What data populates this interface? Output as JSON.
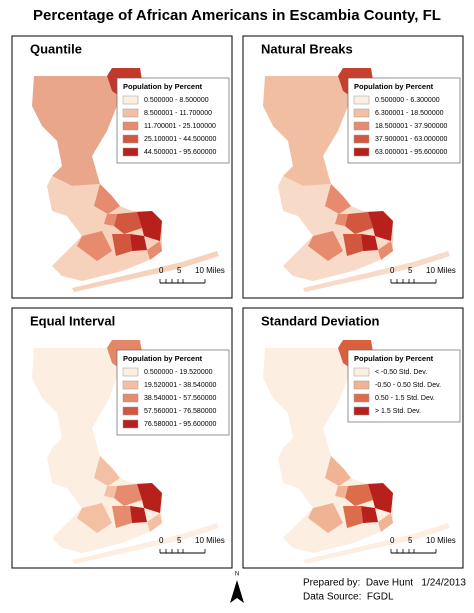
{
  "title": "Percentage of African Americans in Escambia County, FL",
  "panels": [
    {
      "title": "Quantile",
      "legend": {
        "title": "Population by Percent",
        "classes": [
          {
            "label": "0.500000 - 8.500000",
            "color": "#fdeee2"
          },
          {
            "label": "8.500001 - 11.700000",
            "color": "#f4c0a4"
          },
          {
            "label": "11.700001 - 25.100000",
            "color": "#e68b6d"
          },
          {
            "label": "25.100001 - 44.500000",
            "color": "#d2573f"
          },
          {
            "label": "44.500001 - 95.600000",
            "color": "#b8201c"
          }
        ]
      },
      "scale": [
        "0",
        "5",
        "10 Miles"
      ]
    },
    {
      "title": "Natural Breaks",
      "legend": {
        "title": "Population by Percent",
        "classes": [
          {
            "label": "0.500000 - 6.300000",
            "color": "#fdeee2"
          },
          {
            "label": "6.300001 - 18.500000",
            "color": "#f4c0a4"
          },
          {
            "label": "18.500001 - 37.900000",
            "color": "#e68b6d"
          },
          {
            "label": "37.900001 - 63.000000",
            "color": "#d2573f"
          },
          {
            "label": "63.000001 - 95.600000",
            "color": "#b8201c"
          }
        ]
      },
      "scale": [
        "0",
        "5",
        "10 Miles"
      ]
    },
    {
      "title": "Equal Interval",
      "legend": {
        "title": "Population by Percent",
        "classes": [
          {
            "label": "0.500000 - 19.520000",
            "color": "#fdeee2"
          },
          {
            "label": "19.520001 - 38.540000",
            "color": "#f4c0a4"
          },
          {
            "label": "38.540001 - 57.560000",
            "color": "#e68b6d"
          },
          {
            "label": "57.560001 - 76.580000",
            "color": "#d2573f"
          },
          {
            "label": "76.580001 - 95.600000",
            "color": "#b8201c"
          }
        ]
      },
      "scale": [
        "0",
        "5",
        "10 Miles"
      ]
    },
    {
      "title": "Standard Deviation",
      "legend": {
        "title": "Population by Percent",
        "classes": [
          {
            "label": "< -0.50 Std. Dev.",
            "color": "#fdeee2"
          },
          {
            "label": "-0.50 - 0.50 Std. Dev.",
            "color": "#f0b394"
          },
          {
            "label": "0.50 - 1.5 Std. Dev.",
            "color": "#dd6c4b"
          },
          {
            "label": "> 1.5 Std. Dev.",
            "color": "#b8201c"
          }
        ]
      },
      "scale": [
        "0",
        "5",
        "10 Miles"
      ]
    }
  ],
  "north": "N",
  "credits": [
    "Prepared by:  Dave Hunt   1/24/2013",
    "Data Source:  FGDL"
  ]
}
